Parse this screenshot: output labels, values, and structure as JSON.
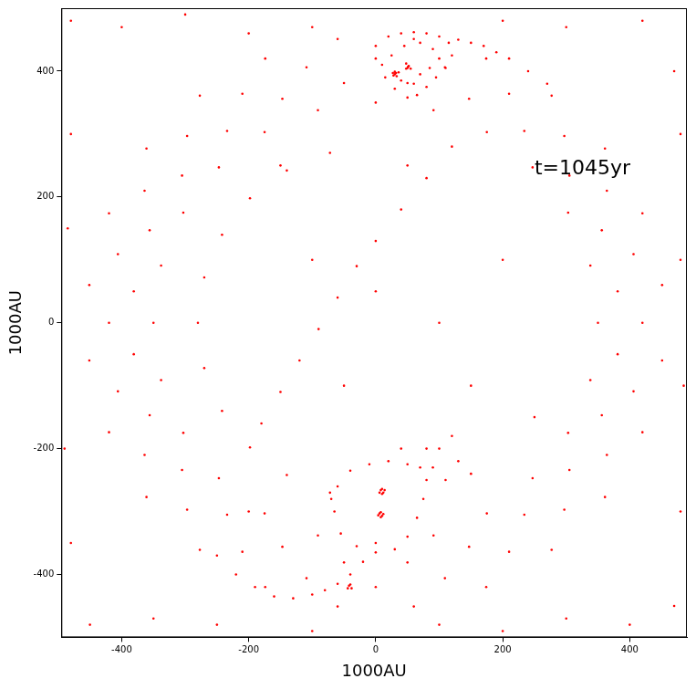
{
  "chart_data": {
    "type": "scatter",
    "x_label": "1000AU",
    "y_label": "1000AU",
    "annotations": [
      {
        "text": "t=1045yr",
        "x": 250,
        "y": 245
      }
    ],
    "color": "#ff0000",
    "marker": "point",
    "grid": false,
    "xlim": [
      -495,
      490
    ],
    "xticks": [
      -400,
      -200,
      0,
      200,
      400
    ],
    "ylim": [
      -500,
      500
    ],
    "yticks": [
      -400,
      -200,
      0,
      200,
      400
    ],
    "x": [
      420,
      406,
      364,
      297,
      210,
      109,
      0,
      -109,
      -210,
      -297,
      -364,
      -406,
      -420,
      -406,
      -364,
      -297,
      -210,
      -109,
      0,
      109,
      210,
      297,
      364,
      406,
      350,
      338,
      303,
      247,
      175,
      91,
      0,
      -91,
      -175,
      -247,
      -303,
      -338,
      -350,
      -338,
      -303,
      -247,
      -175,
      -91,
      0,
      91,
      175,
      247,
      303,
      338,
      451,
      420,
      361,
      277,
      174,
      60,
      -60,
      -174,
      -277,
      -361,
      -420,
      -451,
      -451,
      -420,
      -361,
      -277,
      -174,
      -60,
      60,
      174,
      277,
      361,
      420,
      451,
      381,
      356,
      305,
      234,
      147,
      50,
      -50,
      -147,
      -234,
      -305,
      -356,
      -381,
      -381,
      -356,
      -305,
      -234,
      -147,
      -50,
      50,
      147,
      234,
      305,
      356,
      381,
      -72,
      -140,
      -198,
      -242,
      -270,
      -280,
      -270,
      -242,
      -198,
      -140,
      -72,
      -180,
      -150,
      -120,
      -90,
      -60,
      -30,
      0,
      40,
      80,
      120,
      0,
      20,
      40,
      60,
      80,
      100,
      115,
      120,
      110,
      95,
      80,
      65,
      50,
      30,
      15,
      10,
      25,
      45,
      70,
      90,
      100,
      85,
      70,
      60,
      40,
      30,
      33,
      36,
      50,
      52,
      55,
      48,
      130,
      150,
      170,
      190,
      210,
      240,
      270,
      28,
      32,
      30,
      27,
      48,
      51,
      -60,
      -40,
      -10,
      20,
      50,
      70,
      80,
      75,
      65,
      50,
      30,
      0,
      -30,
      -55,
      -65,
      -70,
      8,
      12,
      10,
      14,
      6,
      10,
      6,
      10,
      8,
      4,
      12,
      8,
      -20,
      -40,
      -60,
      -80,
      -100,
      -130,
      -160,
      -190,
      -220,
      -250,
      -42,
      -38,
      -40,
      -44,
      90,
      110,
      100,
      130,
      150,
      120,
      80,
      40,
      -480,
      -400,
      -300,
      -200,
      -100,
      200,
      300,
      420,
      470,
      480,
      480,
      485,
      480,
      470,
      400,
      300,
      200,
      100,
      -100,
      -250,
      -350,
      -450,
      -480,
      -490,
      -485,
      -480,
      -100,
      100,
      150,
      -50,
      0,
      200,
      -150,
      50,
      250,
      -200
    ],
    "values": [
      0,
      109,
      210,
      297,
      364,
      406,
      420,
      406,
      364,
      297,
      210,
      109,
      0,
      -109,
      -210,
      -297,
      -364,
      -406,
      -420,
      -406,
      -364,
      -297,
      -210,
      -109,
      0,
      91,
      175,
      247,
      303,
      338,
      350,
      338,
      303,
      247,
      175,
      91,
      0,
      -91,
      -175,
      -247,
      -303,
      -338,
      -350,
      -338,
      -303,
      -247,
      -175,
      -91,
      60,
      174,
      277,
      361,
      420,
      451,
      451,
      420,
      361,
      277,
      174,
      60,
      -60,
      -174,
      -277,
      -361,
      -420,
      -451,
      -451,
      -420,
      -361,
      -277,
      -174,
      -60,
      50,
      147,
      234,
      305,
      356,
      381,
      381,
      356,
      305,
      234,
      147,
      50,
      -50,
      -147,
      -234,
      -305,
      -356,
      -381,
      -381,
      -356,
      -305,
      -234,
      -147,
      -50,
      270,
      242,
      198,
      140,
      72,
      0,
      -72,
      -140,
      -198,
      -242,
      -270,
      -160,
      -110,
      -60,
      -10,
      40,
      90,
      130,
      180,
      230,
      280,
      440,
      455,
      460,
      462,
      460,
      455,
      445,
      425,
      405,
      390,
      375,
      362,
      358,
      372,
      390,
      410,
      425,
      440,
      445,
      435,
      420,
      405,
      395,
      380,
      385,
      395,
      392,
      398,
      405,
      408,
      404,
      412,
      450,
      445,
      440,
      430,
      420,
      400,
      380,
      393,
      397,
      399,
      397,
      404,
      407,
      -260,
      -235,
      -225,
      -220,
      -225,
      -230,
      -250,
      -280,
      -310,
      -340,
      -360,
      -365,
      -355,
      -335,
      -300,
      -280,
      -266,
      -270,
      -264,
      -266,
      -270,
      -272,
      -303,
      -307,
      -301,
      -306,
      -304,
      -309,
      -380,
      -400,
      -415,
      -425,
      -432,
      -438,
      -435,
      -420,
      -400,
      -370,
      -418,
      -422,
      -416,
      -422,
      -230,
      -250,
      -200,
      -220,
      -240,
      -180,
      -200,
      -200,
      480,
      470,
      490,
      460,
      470,
      480,
      470,
      480,
      400,
      300,
      100,
      -100,
      -300,
      -450,
      -480,
      -470,
      -490,
      -480,
      -490,
      -480,
      -470,
      -480,
      -350,
      -200,
      150,
      300,
      100,
      0,
      -100,
      -100,
      50,
      100,
      250,
      250,
      -150,
      -300
    ]
  }
}
